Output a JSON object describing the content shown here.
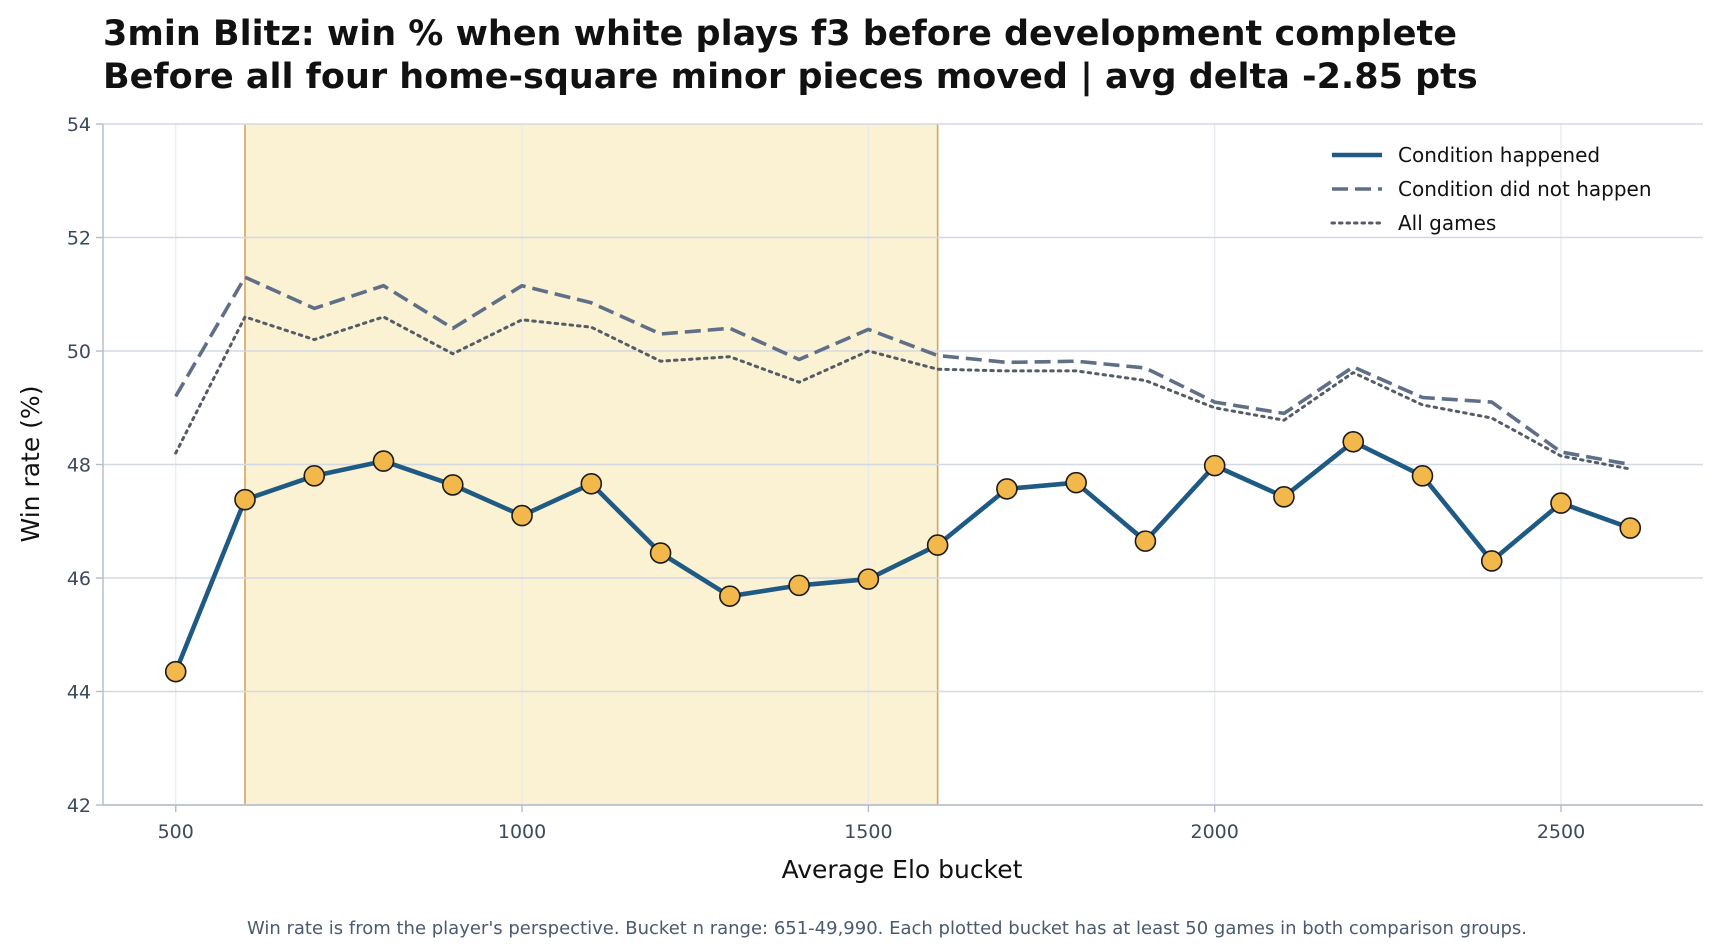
{
  "chart_data": {
    "type": "line",
    "title": "3min Blitz: win % when white plays f3 before development complete",
    "subtitle": "Before all four home-square minor pieces moved | avg delta -2.85 pts",
    "xlabel": "Average Elo bucket",
    "ylabel": "Win rate (%)",
    "xlim": [
      395,
      2705
    ],
    "ylim": [
      42,
      54
    ],
    "x_ticks": [
      500,
      1000,
      1500,
      2000,
      2500
    ],
    "y_ticks": [
      42,
      44,
      46,
      48,
      50,
      52,
      54
    ],
    "grid": true,
    "highlight_band": {
      "x_start": 600,
      "x_end": 1600,
      "color": "#fbf1d3",
      "edge_color": "#d4a55e"
    },
    "x": [
      500,
      600,
      700,
      800,
      900,
      1000,
      1100,
      1200,
      1300,
      1400,
      1500,
      1600,
      1700,
      1800,
      1900,
      2000,
      2100,
      2200,
      2300,
      2400,
      2500,
      2600
    ],
    "series": [
      {
        "name": "Condition happened",
        "style": "solid",
        "color": "#1f5a85",
        "marker_color": "#f2b84b",
        "values": [
          44.35,
          47.38,
          47.8,
          48.06,
          47.64,
          47.1,
          47.66,
          46.44,
          45.68,
          45.87,
          45.98,
          46.58,
          47.57,
          47.68,
          46.65,
          47.98,
          47.43,
          48.4,
          47.8,
          46.3,
          47.32,
          46.88
        ]
      },
      {
        "name": "Condition did not happen",
        "style": "dashed",
        "color": "#5f6f88",
        "values": [
          49.2,
          51.3,
          50.75,
          51.15,
          50.4,
          51.15,
          50.85,
          50.3,
          50.4,
          49.85,
          50.38,
          49.92,
          49.8,
          49.82,
          49.7,
          49.1,
          48.9,
          49.72,
          49.18,
          49.1,
          48.22,
          48.0
        ]
      },
      {
        "name": "All games",
        "style": "dotted",
        "color": "#555c66",
        "values": [
          48.2,
          50.6,
          50.2,
          50.6,
          49.95,
          50.55,
          50.42,
          49.82,
          49.9,
          49.45,
          50.0,
          49.68,
          49.65,
          49.65,
          49.48,
          49.0,
          48.78,
          49.62,
          49.05,
          48.82,
          48.15,
          47.92
        ]
      }
    ],
    "legend_position": "top-right",
    "footnote": "Win rate is from the player's perspective. Bucket n range: 651-49,990. Each plotted bucket has at least 50 games in both comparison groups."
  }
}
